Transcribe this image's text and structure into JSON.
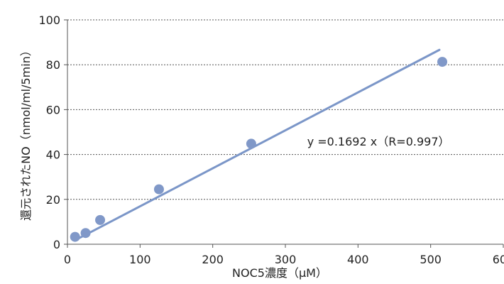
{
  "chart_data": {
    "type": "scatter",
    "title": "",
    "xlabel": "NOC5濃度（μM）",
    "ylabel": "還元されたNO（nmol/ml/5min）",
    "xlim": [
      0,
      600
    ],
    "ylim": [
      0,
      100
    ],
    "xticks": [
      0,
      100,
      200,
      300,
      400,
      500,
      600
    ],
    "yticks": [
      0,
      20,
      40,
      60,
      80,
      100
    ],
    "grid": "horizontal-dotted",
    "legend": "none",
    "series": [
      {
        "x": [
          10.5,
          25,
          45,
          126,
          253,
          516
        ],
        "y": [
          3.3,
          5,
          10.8,
          24.5,
          44.8,
          81.3
        ]
      }
    ],
    "trendline": {
      "type": "linear",
      "slope": 0.1692,
      "intercept": 0,
      "x_range": [
        15,
        512
      ]
    },
    "annotations": [
      {
        "text": "y =0.1692 x（R=0.997）",
        "x": 330,
        "y": 44
      }
    ],
    "colors": {
      "marker": "#8098c8",
      "trendline": "#7b96c8",
      "axis": "#555555",
      "grid": "#555555"
    }
  }
}
